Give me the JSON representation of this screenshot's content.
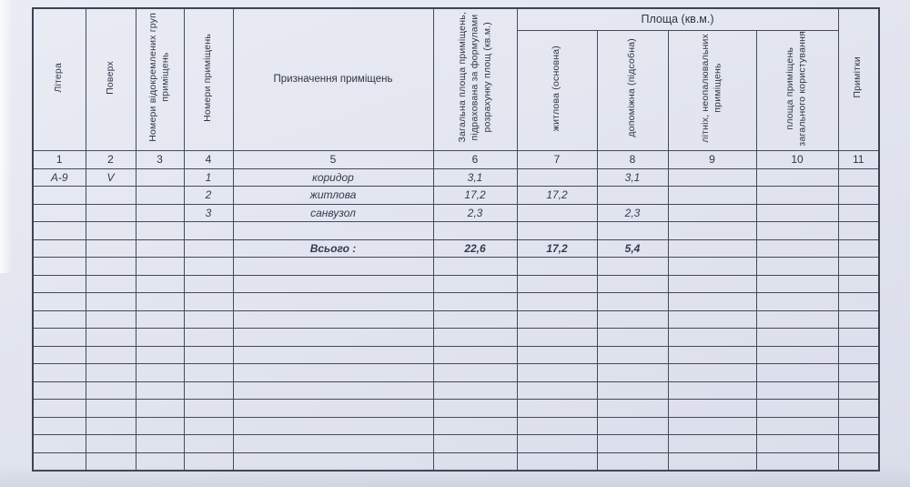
{
  "table": {
    "area_group_header": "Площа (кв.м.)",
    "columns": [
      {
        "num": "1",
        "label": "Літера"
      },
      {
        "num": "2",
        "label": "Поверх"
      },
      {
        "num": "3",
        "label": "Номери відокремлених груп\nприміщень"
      },
      {
        "num": "4",
        "label": "Номери приміщень"
      },
      {
        "num": "5",
        "label": "Призначення приміщень"
      },
      {
        "num": "6",
        "label": "Загальна площа приміщень,\nпідрахована за формулами\nрозрахунку площ (кв.м.)"
      },
      {
        "num": "7",
        "label": "житлова (основна)"
      },
      {
        "num": "8",
        "label": "допоміжна (підсобна)"
      },
      {
        "num": "9",
        "label": "літніх, неопалювальних\nприміщень"
      },
      {
        "num": "10",
        "label": "площа приміщень\nзагального користування"
      },
      {
        "num": "11",
        "label": "Примітки"
      }
    ],
    "rows": [
      {
        "bold": false,
        "cells": [
          "А-9",
          "V",
          "",
          "1",
          "коридор",
          "3,1",
          "",
          "3,1",
          "",
          "",
          ""
        ]
      },
      {
        "bold": false,
        "cells": [
          "",
          "",
          "",
          "2",
          "житлова",
          "17,2",
          "17,2",
          "",
          "",
          "",
          ""
        ]
      },
      {
        "bold": false,
        "cells": [
          "",
          "",
          "",
          "3",
          "санвузол",
          "2,3",
          "",
          "2,3",
          "",
          "",
          ""
        ]
      },
      {
        "bold": false,
        "cells": [
          "",
          "",
          "",
          "",
          "",
          "",
          "",
          "",
          "",
          "",
          ""
        ]
      },
      {
        "bold": true,
        "cells": [
          "",
          "",
          "",
          "",
          "Всього :",
          "22,6",
          "17,2",
          "5,4",
          "",
          "",
          ""
        ]
      },
      {
        "bold": false,
        "cells": [
          "",
          "",
          "",
          "",
          "",
          "",
          "",
          "",
          "",
          "",
          ""
        ]
      },
      {
        "bold": false,
        "cells": [
          "",
          "",
          "",
          "",
          "",
          "",
          "",
          "",
          "",
          "",
          ""
        ]
      },
      {
        "bold": false,
        "cells": [
          "",
          "",
          "",
          "",
          "",
          "",
          "",
          "",
          "",
          "",
          ""
        ]
      },
      {
        "bold": false,
        "cells": [
          "",
          "",
          "",
          "",
          "",
          "",
          "",
          "",
          "",
          "",
          ""
        ]
      },
      {
        "bold": false,
        "cells": [
          "",
          "",
          "",
          "",
          "",
          "",
          "",
          "",
          "",
          "",
          ""
        ]
      },
      {
        "bold": false,
        "cells": [
          "",
          "",
          "",
          "",
          "",
          "",
          "",
          "",
          "",
          "",
          ""
        ]
      },
      {
        "bold": false,
        "cells": [
          "",
          "",
          "",
          "",
          "",
          "",
          "",
          "",
          "",
          "",
          ""
        ]
      },
      {
        "bold": false,
        "cells": [
          "",
          "",
          "",
          "",
          "",
          "",
          "",
          "",
          "",
          "",
          ""
        ]
      },
      {
        "bold": false,
        "cells": [
          "",
          "",
          "",
          "",
          "",
          "",
          "",
          "",
          "",
          "",
          ""
        ]
      },
      {
        "bold": false,
        "cells": [
          "",
          "",
          "",
          "",
          "",
          "",
          "",
          "",
          "",
          "",
          ""
        ]
      },
      {
        "bold": false,
        "cells": [
          "",
          "",
          "",
          "",
          "",
          "",
          "",
          "",
          "",
          "",
          ""
        ]
      },
      {
        "bold": false,
        "cells": [
          "",
          "",
          "",
          "",
          "",
          "",
          "",
          "",
          "",
          "",
          ""
        ]
      }
    ]
  },
  "colors": {
    "paper": "#e2e5ef",
    "grid_line": "#434a5c",
    "text": "#323a4d"
  }
}
